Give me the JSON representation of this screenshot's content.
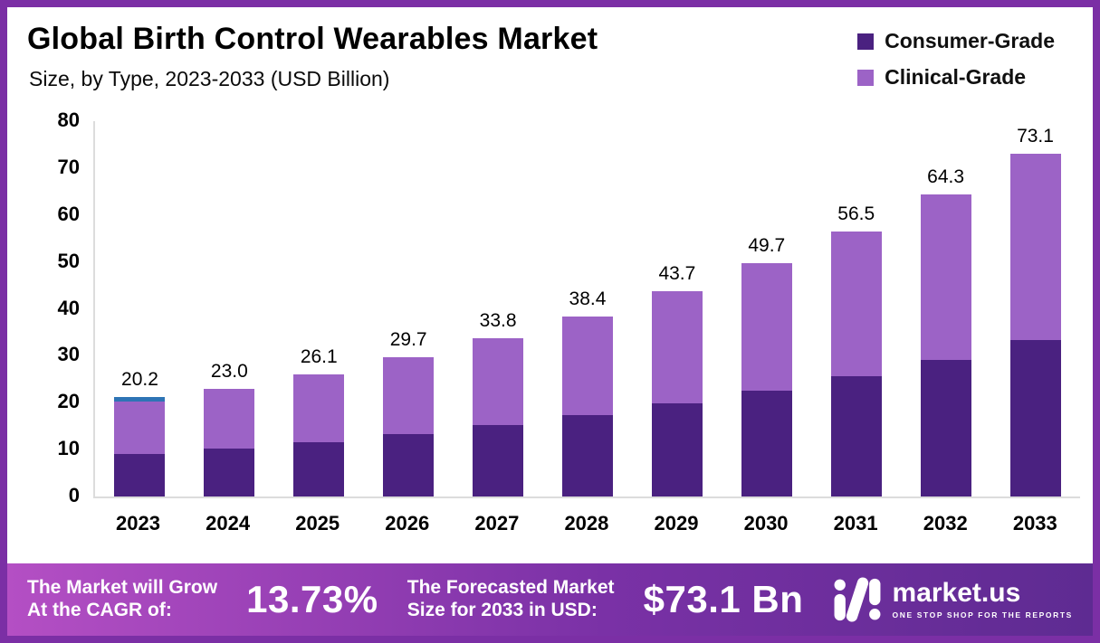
{
  "title": "Global Birth Control Wearables Market",
  "subtitle": "Size, by Type, 2023-2033 (USD Billion)",
  "legend": [
    {
      "label": "Consumer-Grade",
      "color": "#4a2180"
    },
    {
      "label": "Clinical-Grade",
      "color": "#9c63c6"
    }
  ],
  "colors": {
    "border": "#7b2fa5",
    "banner_left": "#b44fc4",
    "banner_mid": "#7a31a6",
    "banner_right": "#5e2b92",
    "axis_line": "#dcdcdc"
  },
  "chart_data": {
    "type": "bar",
    "stacked": true,
    "title": "Global Birth Control Wearables Market Size, by Type, 2023-2033 (USD Billion)",
    "xlabel": "",
    "ylabel": "USD Billion",
    "ylim": [
      0,
      80
    ],
    "yticks": [
      0,
      10,
      20,
      30,
      40,
      50,
      60,
      70,
      80
    ],
    "grid": false,
    "legend_position": "top-right",
    "categories": [
      "2023",
      "2024",
      "2025",
      "2026",
      "2027",
      "2028",
      "2029",
      "2030",
      "2031",
      "2032",
      "2033"
    ],
    "series": [
      {
        "name": "Consumer-Grade",
        "color": "#4a2180",
        "values": [
          9.0,
          10.2,
          11.6,
          13.3,
          15.2,
          17.3,
          19.8,
          22.5,
          25.6,
          29.2,
          33.3
        ]
      },
      {
        "name": "Clinical-Grade",
        "color": "#9c63c6",
        "values": [
          11.2,
          12.8,
          14.5,
          16.4,
          18.6,
          21.1,
          23.9,
          27.2,
          30.9,
          35.1,
          39.8
        ]
      }
    ],
    "totals": [
      20.2,
      23.0,
      26.1,
      29.7,
      33.8,
      38.4,
      43.7,
      49.7,
      56.5,
      64.3,
      73.1
    ],
    "total_labels": [
      "20.2",
      "23.0",
      "26.1",
      "29.7",
      "33.8",
      "38.4",
      "43.7",
      "49.7",
      "56.5",
      "64.3",
      "73.1"
    ],
    "highlight": {
      "category": "2023",
      "value": 1.0,
      "color": "#2e74b5"
    }
  },
  "banner": {
    "cagr_label_line1": "The Market will Grow",
    "cagr_label_line2": "At the CAGR of:",
    "cagr_value": "13.73%",
    "forecast_label_line1": "The Forecasted Market",
    "forecast_label_line2": "Size for 2033 in USD:",
    "forecast_value": "$73.1 Bn",
    "brand": "market.us",
    "brand_tagline": "ONE STOP SHOP FOR THE REPORTS"
  }
}
